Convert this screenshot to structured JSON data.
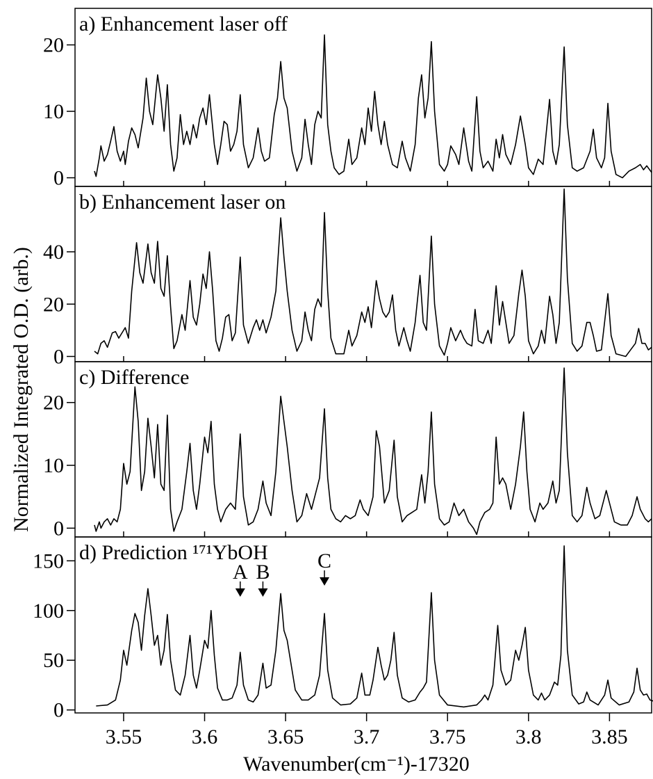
{
  "ylabel": "Normalized Integrated O.D. (arb.)",
  "chart_data": [
    {
      "type": "line",
      "title": "a) Enhancement laser off",
      "xlim": [
        3.52,
        3.876
      ],
      "ylim": [
        -1.3,
        25.5
      ],
      "yticks": [
        0,
        10,
        20
      ],
      "color": "#000000",
      "x": [
        3.532,
        3.533,
        3.535,
        3.536,
        3.538,
        3.54,
        3.542,
        3.544,
        3.546,
        3.548,
        3.55,
        3.551,
        3.553,
        3.555,
        3.557,
        3.559,
        3.562,
        3.564,
        3.566,
        3.568,
        3.571,
        3.573,
        3.575,
        3.577,
        3.579,
        3.581,
        3.583,
        3.585,
        3.587,
        3.589,
        3.591,
        3.593,
        3.595,
        3.597,
        3.599,
        3.601,
        3.603,
        3.606,
        3.608,
        3.61,
        3.612,
        3.614,
        3.616,
        3.618,
        3.62,
        3.622,
        3.624,
        3.627,
        3.63,
        3.633,
        3.635,
        3.637,
        3.64,
        3.643,
        3.645,
        3.647,
        3.649,
        3.651,
        3.654,
        3.657,
        3.66,
        3.662,
        3.664,
        3.666,
        3.668,
        3.67,
        3.672,
        3.674,
        3.676,
        3.678,
        3.68,
        3.683,
        3.686,
        3.689,
        3.691,
        3.694,
        3.697,
        3.699,
        3.701,
        3.703,
        3.705,
        3.707,
        3.709,
        3.711,
        3.713,
        3.716,
        3.719,
        3.722,
        3.724,
        3.727,
        3.73,
        3.732,
        3.734,
        3.736,
        3.738,
        3.74,
        3.742,
        3.745,
        3.748,
        3.75,
        3.752,
        3.755,
        3.757,
        3.76,
        3.763,
        3.765,
        3.768,
        3.77,
        3.772,
        3.775,
        3.778,
        3.78,
        3.782,
        3.784,
        3.786,
        3.789,
        3.792,
        3.795,
        3.798,
        3.8,
        3.803,
        3.806,
        3.809,
        3.813,
        3.815,
        3.817,
        3.819,
        3.822,
        3.824,
        3.827,
        3.83,
        3.834,
        3.838,
        3.84,
        3.842,
        3.845,
        3.847,
        3.849,
        3.851,
        3.854,
        3.858,
        3.862,
        3.866,
        3.869,
        3.871,
        3.873,
        3.876
      ],
      "values": [
        1,
        0.2,
        3,
        4.8,
        2.5,
        3.5,
        5.5,
        7.7,
        4,
        2.5,
        4,
        2,
        5.5,
        7.5,
        6.5,
        4.5,
        9,
        15,
        10,
        8,
        15.5,
        12,
        7,
        14,
        5,
        1,
        3,
        9.5,
        5,
        7,
        5,
        8,
        6,
        9,
        10.5,
        8,
        12.5,
        5,
        2,
        5,
        8.5,
        8,
        4,
        5,
        7,
        12.5,
        5,
        1.5,
        3,
        7.5,
        4,
        2.5,
        3,
        9.5,
        12,
        17.5,
        12,
        10.5,
        4,
        1,
        3,
        8.8,
        5,
        2,
        8,
        10,
        9,
        21.5,
        8,
        4,
        1.5,
        0.5,
        1,
        5.8,
        2,
        3,
        7.5,
        5,
        10.5,
        7,
        13,
        8,
        5,
        8.5,
        5,
        2,
        1.5,
        5.5,
        3,
        1,
        5,
        12,
        15.5,
        9,
        12,
        20.5,
        10,
        2,
        1,
        2,
        4.8,
        3.5,
        2,
        7.5,
        2.5,
        1,
        12.2,
        4,
        1.5,
        2.5,
        1,
        5.8,
        3,
        6.5,
        3.5,
        2,
        5,
        9.3,
        5,
        1.5,
        0.5,
        2.8,
        2,
        11.8,
        4,
        2,
        5,
        19.7,
        8,
        1.5,
        1,
        1.5,
        4,
        7.3,
        3,
        1.5,
        3,
        11.2,
        4,
        0.5,
        0,
        1,
        1.5,
        2,
        1.2,
        1.8,
        0.8
      ]
    },
    {
      "type": "line",
      "title": "b) Enhancement laser on",
      "xlim": [
        3.52,
        3.876
      ],
      "ylim": [
        -2,
        65
      ],
      "yticks": [
        0,
        20,
        40
      ],
      "color": "#000000",
      "x": [
        3.532,
        3.534,
        3.536,
        3.538,
        3.54,
        3.543,
        3.545,
        3.547,
        3.549,
        3.551,
        3.553,
        3.555,
        3.558,
        3.56,
        3.562,
        3.565,
        3.567,
        3.569,
        3.571,
        3.573,
        3.575,
        3.577,
        3.579,
        3.581,
        3.583,
        3.586,
        3.588,
        3.591,
        3.593,
        3.595,
        3.597,
        3.599,
        3.601,
        3.603,
        3.605,
        3.607,
        3.609,
        3.611,
        3.613,
        3.615,
        3.617,
        3.619,
        3.622,
        3.624,
        3.627,
        3.63,
        3.632,
        3.634,
        3.636,
        3.638,
        3.641,
        3.644,
        3.647,
        3.649,
        3.651,
        3.654,
        3.657,
        3.66,
        3.662,
        3.664,
        3.666,
        3.668,
        3.67,
        3.672,
        3.674,
        3.676,
        3.678,
        3.681,
        3.686,
        3.689,
        3.691,
        3.694,
        3.697,
        3.699,
        3.701,
        3.703,
        3.706,
        3.708,
        3.71,
        3.712,
        3.714,
        3.716,
        3.718,
        3.72,
        3.723,
        3.725,
        3.727,
        3.73,
        3.733,
        3.735,
        3.737,
        3.74,
        3.742,
        3.745,
        3.748,
        3.75,
        3.752,
        3.755,
        3.758,
        3.76,
        3.762,
        3.765,
        3.767,
        3.769,
        3.772,
        3.775,
        3.777,
        3.78,
        3.782,
        3.784,
        3.786,
        3.788,
        3.791,
        3.794,
        3.796,
        3.798,
        3.8,
        3.803,
        3.806,
        3.808,
        3.81,
        3.813,
        3.815,
        3.817,
        3.819,
        3.822,
        3.824,
        3.827,
        3.83,
        3.833,
        3.836,
        3.838,
        3.84,
        3.842,
        3.845,
        3.849,
        3.851,
        3.854,
        3.857,
        3.86,
        3.863,
        3.866,
        3.868,
        3.87,
        3.872,
        3.874,
        3.876
      ],
      "values": [
        2,
        1,
        5,
        6,
        3.5,
        9,
        9.5,
        7,
        9,
        11,
        7,
        25,
        43.5,
        32,
        28,
        43,
        32,
        28,
        44,
        26,
        23,
        38.5,
        19,
        3,
        6,
        16,
        10,
        29,
        15,
        12,
        20,
        31.5,
        26,
        40,
        25,
        6,
        2,
        7,
        15,
        16,
        6,
        9,
        38,
        12,
        5,
        11,
        14,
        10,
        14,
        9,
        15,
        25,
        53,
        38,
        25,
        10,
        2,
        6,
        17,
        10,
        6,
        18,
        22,
        19,
        55,
        25,
        7,
        1,
        1,
        10,
        4,
        8,
        17,
        13,
        19,
        11,
        29,
        22,
        17,
        15,
        17,
        23.5,
        10,
        4,
        11,
        6,
        2,
        13,
        31,
        13,
        10,
        46,
        20,
        4,
        0.5,
        5,
        11,
        6,
        10,
        7,
        5,
        4,
        18,
        6,
        5,
        10,
        5,
        27,
        12,
        21,
        13,
        5,
        8,
        24,
        33,
        23,
        6,
        1,
        4,
        10,
        5,
        23,
        16,
        5,
        13,
        64,
        30,
        5,
        2,
        4,
        13,
        13,
        8,
        2,
        2.5,
        24,
        8,
        1,
        0.5,
        0,
        2.5,
        5,
        10.7,
        5,
        5,
        2.5,
        3.5
      ]
    },
    {
      "type": "line",
      "title": "c) Difference",
      "xlim": [
        3.52,
        3.876
      ],
      "ylim": [
        -1.4,
        26.5
      ],
      "yticks": [
        0,
        10,
        20
      ],
      "color": "#000000",
      "x": [
        3.532,
        3.533,
        3.535,
        3.536,
        3.538,
        3.54,
        3.542,
        3.544,
        3.546,
        3.548,
        3.55,
        3.552,
        3.554,
        3.557,
        3.559,
        3.561,
        3.563,
        3.565,
        3.567,
        3.569,
        3.571,
        3.573,
        3.575,
        3.577,
        3.579,
        3.581,
        3.583,
        3.586,
        3.589,
        3.591,
        3.593,
        3.595,
        3.597,
        3.6,
        3.602,
        3.604,
        3.606,
        3.608,
        3.61,
        3.613,
        3.616,
        3.619,
        3.622,
        3.624,
        3.627,
        3.63,
        3.633,
        3.636,
        3.638,
        3.641,
        3.644,
        3.647,
        3.649,
        3.651,
        3.654,
        3.657,
        3.66,
        3.663,
        3.666,
        3.668,
        3.671,
        3.674,
        3.676,
        3.678,
        3.681,
        3.684,
        3.687,
        3.69,
        3.693,
        3.696,
        3.698,
        3.701,
        3.704,
        3.706,
        3.708,
        3.711,
        3.714,
        3.717,
        3.719,
        3.722,
        3.725,
        3.728,
        3.731,
        3.734,
        3.736,
        3.738,
        3.74,
        3.742,
        3.745,
        3.748,
        3.751,
        3.754,
        3.757,
        3.76,
        3.763,
        3.766,
        3.768,
        3.77,
        3.773,
        3.776,
        3.778,
        3.78,
        3.782,
        3.784,
        3.786,
        3.789,
        3.792,
        3.795,
        3.797,
        3.799,
        3.801,
        3.804,
        3.807,
        3.809,
        3.812,
        3.815,
        3.817,
        3.819,
        3.822,
        3.824,
        3.827,
        3.83,
        3.833,
        3.836,
        3.838,
        3.841,
        3.844,
        3.848,
        3.85,
        3.853,
        3.857,
        3.861,
        3.864,
        3.867,
        3.869,
        3.872,
        3.874,
        3.876
      ],
      "values": [
        0.5,
        -0.5,
        1,
        0,
        1,
        1.5,
        0.5,
        1.5,
        1,
        3,
        10.3,
        7,
        9,
        22.5,
        17,
        6,
        9,
        17.5,
        13,
        8,
        16.5,
        7,
        6,
        18,
        3,
        -0.5,
        1,
        3,
        9,
        13.5,
        6,
        3,
        7,
        14.5,
        12,
        17,
        7,
        3,
        1,
        3,
        4,
        3,
        15,
        5,
        0.5,
        1,
        3,
        7.5,
        4,
        2,
        9,
        21,
        17,
        13,
        6,
        1,
        2,
        5.5,
        3,
        5,
        8,
        19,
        8,
        3,
        1.5,
        1,
        2,
        1.5,
        2,
        4.5,
        3,
        2,
        5,
        15.5,
        13,
        4,
        6,
        14,
        5,
        1,
        2,
        2.5,
        3,
        8.5,
        4,
        9,
        18.5,
        7,
        1.5,
        0.5,
        1,
        4,
        2,
        3,
        1,
        0,
        -1,
        1,
        2.5,
        3,
        4,
        14.5,
        7,
        8,
        7,
        3,
        7,
        13,
        18.5,
        9,
        3,
        1,
        4,
        3,
        4,
        7.5,
        4,
        6,
        25.5,
        12,
        2,
        1,
        2,
        6.5,
        4,
        1.5,
        2,
        6,
        4,
        1,
        0.5,
        0.5,
        2,
        5,
        3,
        1.5,
        1,
        1.5
      ]
    },
    {
      "type": "line",
      "title": "d) Prediction ¹⁷¹YbOH",
      "xlim": [
        3.52,
        3.876
      ],
      "ylim": [
        -3,
        174
      ],
      "yticks": [
        0,
        50,
        100,
        150
      ],
      "color": "#000000",
      "xticks": [
        3.55,
        3.6,
        3.65,
        3.7,
        3.75,
        3.8,
        3.85
      ],
      "xlabel": "Wavenumber(cm⁻¹)-17320",
      "annotations": [
        {
          "text": "A",
          "x": 3.622
        },
        {
          "text": "B",
          "x": 3.636
        },
        {
          "text": "C",
          "x": 3.674
        }
      ],
      "x": [
        3.533,
        3.54,
        3.545,
        3.548,
        3.55,
        3.552,
        3.555,
        3.557,
        3.559,
        3.561,
        3.563,
        3.565,
        3.567,
        3.569,
        3.571,
        3.573,
        3.575,
        3.577,
        3.579,
        3.582,
        3.585,
        3.588,
        3.591,
        3.593,
        3.595,
        3.597,
        3.6,
        3.602,
        3.604,
        3.606,
        3.608,
        3.611,
        3.614,
        3.617,
        3.62,
        3.622,
        3.624,
        3.627,
        3.63,
        3.633,
        3.636,
        3.638,
        3.641,
        3.644,
        3.647,
        3.649,
        3.651,
        3.653,
        3.656,
        3.66,
        3.664,
        3.668,
        3.671,
        3.674,
        3.676,
        3.679,
        3.684,
        3.69,
        3.694,
        3.697,
        3.699,
        3.702,
        3.704,
        3.707,
        3.709,
        3.711,
        3.713,
        3.715,
        3.717,
        3.719,
        3.722,
        3.726,
        3.73,
        3.733,
        3.735,
        3.737,
        3.74,
        3.742,
        3.745,
        3.75,
        3.76,
        3.768,
        3.771,
        3.773,
        3.775,
        3.778,
        3.781,
        3.783,
        3.786,
        3.789,
        3.792,
        3.794,
        3.796,
        3.798,
        3.8,
        3.803,
        3.806,
        3.808,
        3.81,
        3.813,
        3.816,
        3.818,
        3.82,
        3.822,
        3.824,
        3.827,
        3.831,
        3.834,
        3.836,
        3.838,
        3.843,
        3.847,
        3.849,
        3.851,
        3.856,
        3.862,
        3.865,
        3.867,
        3.869,
        3.871,
        3.873,
        3.875,
        3.877
      ],
      "values": [
        4,
        5,
        10,
        30,
        60,
        45,
        80,
        97,
        88,
        60,
        95,
        122,
        95,
        65,
        75,
        45,
        60,
        96,
        50,
        20,
        15,
        35,
        75,
        35,
        22,
        40,
        70,
        62,
        100,
        55,
        22,
        10,
        10,
        12,
        25,
        58,
        25,
        10,
        8,
        15,
        47,
        22,
        25,
        60,
        117,
        80,
        70,
        50,
        20,
        10,
        10,
        15,
        35,
        97,
        40,
        12,
        5,
        6,
        12,
        37,
        15,
        15,
        30,
        63,
        45,
        30,
        35,
        50,
        78,
        35,
        12,
        8,
        10,
        18,
        22,
        28,
        118,
        50,
        15,
        5,
        3,
        5,
        10,
        15,
        10,
        25,
        85,
        40,
        25,
        30,
        60,
        50,
        65,
        83,
        40,
        15,
        10,
        17,
        10,
        15,
        28,
        25,
        55,
        165,
        60,
        15,
        6,
        8,
        18,
        10,
        5,
        15,
        30,
        12,
        5,
        8,
        18,
        42,
        20,
        15,
        16,
        10,
        9
      ]
    }
  ]
}
